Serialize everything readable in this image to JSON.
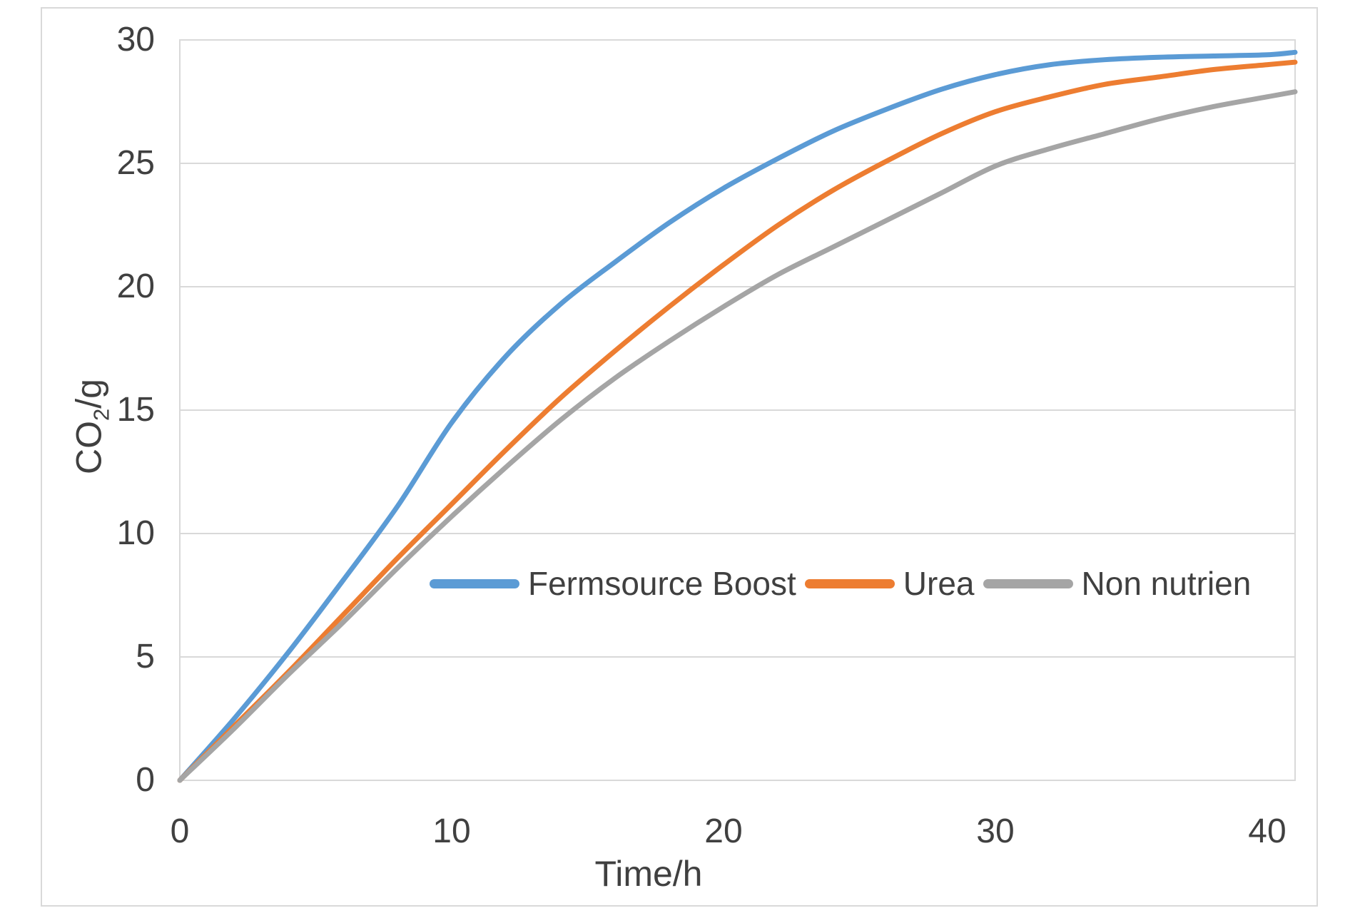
{
  "chart_data": {
    "type": "line",
    "title": "",
    "xlabel": "Time/h",
    "ylabel": "CO2/g",
    "ylabel_prefix": "CO",
    "ylabel_sub": "2",
    "ylabel_suffix": "/g",
    "xlim": [
      0,
      41
    ],
    "ylim": [
      0,
      30
    ],
    "xticks": [
      0,
      10,
      20,
      30,
      40
    ],
    "yticks": [
      0,
      5,
      10,
      15,
      20,
      25,
      30
    ],
    "grid": "horizontal gridlines on, plot area fully framed",
    "legend_position": "inside plot, horizontal row at about y=8 data units",
    "x": [
      0,
      2,
      4,
      6,
      8,
      10,
      12,
      14,
      16,
      18,
      20,
      22,
      24,
      26,
      28,
      30,
      32,
      34,
      36,
      38,
      40,
      41
    ],
    "series": [
      {
        "name": "Fermsource Boost",
        "color": "#5B9BD5",
        "values": [
          0,
          2.5,
          5.2,
          8.1,
          11.1,
          14.5,
          17.2,
          19.3,
          21.0,
          22.6,
          24.0,
          25.2,
          26.3,
          27.2,
          28.0,
          28.6,
          29.0,
          29.2,
          29.3,
          29.35,
          29.4,
          29.5
        ]
      },
      {
        "name": "Urea",
        "color": "#ED7D31",
        "values": [
          0,
          2.2,
          4.4,
          6.7,
          9.0,
          11.2,
          13.4,
          15.5,
          17.4,
          19.2,
          20.9,
          22.5,
          23.9,
          25.1,
          26.2,
          27.1,
          27.7,
          28.2,
          28.5,
          28.8,
          29.0,
          29.1
        ]
      },
      {
        "name": "Non nutrien",
        "color": "#A5A5A5",
        "values": [
          0,
          2.1,
          4.3,
          6.4,
          8.6,
          10.7,
          12.7,
          14.6,
          16.3,
          17.8,
          19.2,
          20.5,
          21.6,
          22.7,
          23.8,
          24.9,
          25.6,
          26.2,
          26.8,
          27.3,
          27.7,
          27.9
        ]
      }
    ],
    "colors": {
      "grid": "#D9D9D9",
      "frame": "#D9D9D9",
      "axis_text": "#404040"
    }
  }
}
